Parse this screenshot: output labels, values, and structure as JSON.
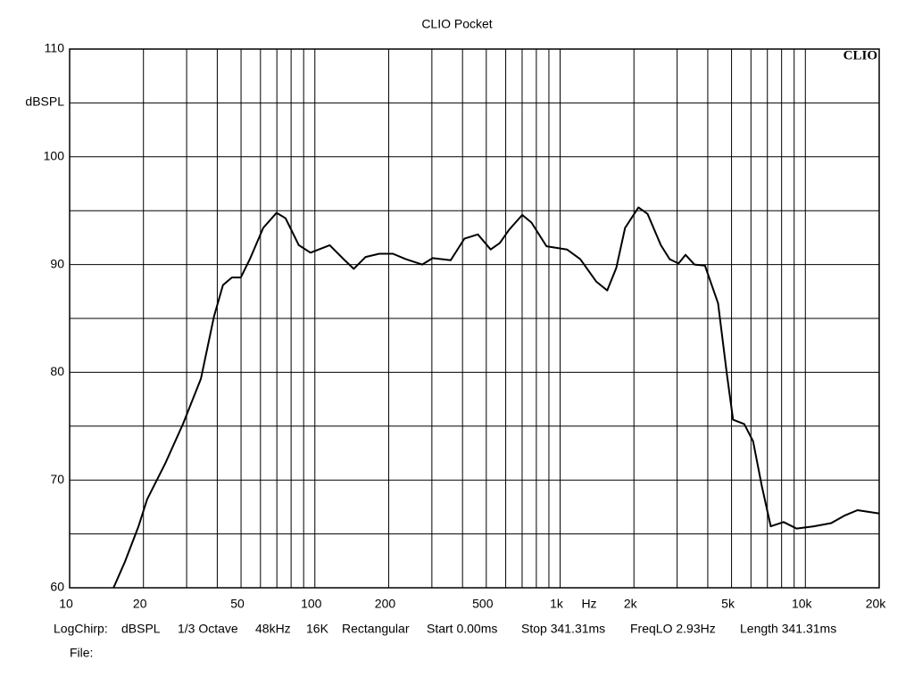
{
  "chart_data": {
    "type": "line",
    "title": "CLIO Pocket",
    "logo": "CLIO",
    "x_label": "Hz",
    "y_label": "dBSPL",
    "log_x": true,
    "grid": true,
    "color": "#000000",
    "xlim": [
      10,
      20000
    ],
    "ylim": [
      60,
      110
    ],
    "xticks": [
      10,
      20,
      50,
      100,
      200,
      500,
      {
        "value": 1000,
        "label": "1k"
      },
      {
        "value": 2000,
        "label": "2k"
      },
      {
        "value": 5000,
        "label": "5k"
      },
      {
        "value": 10000,
        "label": "10k"
      },
      {
        "value": 20000,
        "label": "20k"
      }
    ],
    "yticks": [
      60,
      70,
      80,
      90,
      100,
      110
    ],
    "xgrid": [
      10,
      20,
      30,
      40,
      50,
      60,
      70,
      80,
      90,
      100,
      200,
      300,
      400,
      500,
      600,
      700,
      800,
      900,
      1000,
      2000,
      3000,
      4000,
      5000,
      6000,
      7000,
      8000,
      9000,
      10000,
      20000
    ],
    "ygrid": [
      60,
      65,
      70,
      75,
      80,
      85,
      90,
      95,
      100,
      105,
      110
    ],
    "x": [
      15.1,
      16.8,
      19.1,
      20.7,
      24.5,
      29.0,
      34.3,
      38.8,
      42.2,
      45.9,
      49.9,
      54.3,
      61.6,
      69.8,
      75.9,
      86.0,
      96.0,
      115,
      131,
      144,
      161,
      183,
      208,
      235,
      274,
      302,
      358,
      407,
      462,
      521,
      568,
      618,
      701,
      764,
      880,
      1066,
      1208,
      1406,
      1556,
      1695,
      1840,
      2086,
      2273,
      2575,
      2797,
      3040,
      3246,
      3529,
      3897,
      4405,
      4786,
      5074,
      5634,
      6121,
      6651,
      7226,
      8152,
      9205,
      10820,
      12740,
      14440,
      16310,
      19940
    ],
    "values": [
      60,
      62.4,
      65.7,
      68.2,
      71.5,
      75.2,
      79.4,
      85.2,
      88.1,
      88.8,
      88.8,
      90.5,
      93.4,
      94.8,
      94.3,
      91.8,
      91.1,
      91.8,
      90.5,
      89.6,
      90.7,
      91.0,
      91.0,
      90.5,
      90.0,
      90.6,
      90.4,
      92.4,
      92.8,
      91.4,
      92.0,
      93.2,
      94.6,
      93.9,
      91.7,
      91.4,
      90.5,
      88.4,
      87.6,
      89.7,
      93.4,
      95.3,
      94.7,
      91.8,
      90.5,
      90.1,
      90.9,
      90.0,
      89.9,
      86.4,
      79.8,
      75.6,
      75.2,
      73.6,
      69.4,
      65.7,
      66.1,
      65.5,
      65.7,
      66.0,
      66.7,
      67.2,
      66.9
    ],
    "footer": [
      "LogChirp:",
      "dBSPL",
      "1/3 Octave",
      "48kHz",
      "16K",
      "Rectangular",
      "Start 0.00ms",
      "Stop 341.31ms",
      "FreqLO 2.93Hz",
      "Length 341.31ms"
    ],
    "file_label": "File:"
  }
}
